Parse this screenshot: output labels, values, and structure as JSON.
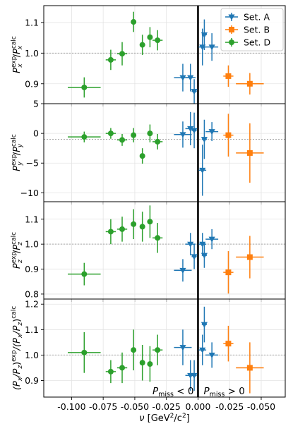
{
  "chart_data": {
    "type": "scatter",
    "xlabel": "ν [GeV²/c²]",
    "xlim": [
      -0.122,
      0.069
    ],
    "x_ticks": [
      {
        "value": -0.1,
        "label": "-0.100"
      },
      {
        "value": -0.075,
        "label": "-0.075"
      },
      {
        "value": -0.05,
        "label": "-0.050"
      },
      {
        "value": -0.025,
        "label": "-0.025"
      },
      {
        "value": 0.0,
        "label": "0.000"
      },
      {
        "value": 0.025,
        "label": "-0.025"
      },
      {
        "value": 0.05,
        "label": "-0.050"
      }
    ],
    "vertical_line_x": 0.0,
    "annotations": [
      {
        "text": "P_miss < 0",
        "base": "P",
        "sub": "miss",
        "rel": "< 0",
        "anchor": "end"
      },
      {
        "text": "P_miss > 0",
        "base": "P",
        "sub": "miss",
        "rel": "> 0",
        "anchor": "start"
      }
    ],
    "legend": {
      "placement": "top-right",
      "entries": [
        {
          "label": "Set. A",
          "color": "#1f77b4",
          "marker": "triangle-down"
        },
        {
          "label": "Set. B",
          "color": "#ff7f0e",
          "marker": "square"
        },
        {
          "label": "Set. D",
          "color": "#2ca02c",
          "marker": "circle"
        }
      ]
    },
    "series_style": {
      "A": {
        "color": "#1f77b4",
        "marker": "triangle-down"
      },
      "B": {
        "color": "#ff7f0e",
        "marker": "square"
      },
      "D": {
        "color": "#2ca02c",
        "marker": "circle"
      }
    },
    "grid": true,
    "panels": [
      {
        "ylabel": "P_x^exp / P_x^calc",
        "ylabel_parts": {
          "b1": "P",
          "sup1": "exp",
          "sub1": "x",
          "mid": "/",
          "b2": "P",
          "sup2": "calc",
          "sub2": "x"
        },
        "ylim": [
          0.835,
          1.155
        ],
        "yticks": [
          {
            "value": 0.9,
            "label": "0.9"
          },
          {
            "value": 1.0,
            "label": "1.0"
          },
          {
            "value": 1.1,
            "label": "1.1"
          }
        ],
        "ref_line": 1.0,
        "series": {
          "A": [
            {
              "x": -0.012,
              "y": 0.92,
              "xerr": 0.007,
              "yerr": 0.045
            },
            {
              "x": -0.006,
              "y": 0.92,
              "xerr": 0.004,
              "yerr": 0.045
            },
            {
              "x": -0.003,
              "y": 0.875,
              "xerr": 0.002,
              "yerr": 0.04
            },
            {
              "x": 0.0035,
              "y": 1.02,
              "xerr": 0.003,
              "yerr": 0.06
            },
            {
              "x": 0.005,
              "y": 1.06,
              "xerr": 0.002,
              "yerr": 0.05
            },
            {
              "x": 0.011,
              "y": 1.02,
              "xerr": 0.005,
              "yerr": 0.045
            }
          ],
          "B": [
            {
              "x": 0.024,
              "y": 0.925,
              "xerr": 0.004,
              "yerr": 0.035
            },
            {
              "x": 0.041,
              "y": 0.9,
              "xerr": 0.011,
              "yerr": 0.035
            }
          ],
          "D": [
            {
              "x": -0.09,
              "y": 0.888,
              "xerr": 0.013,
              "yerr": 0.033
            },
            {
              "x": -0.069,
              "y": 0.978,
              "xerr": 0.004,
              "yerr": 0.033
            },
            {
              "x": -0.06,
              "y": 0.998,
              "xerr": 0.004,
              "yerr": 0.038
            },
            {
              "x": -0.051,
              "y": 1.102,
              "xerr": 0.002,
              "yerr": 0.033
            },
            {
              "x": -0.044,
              "y": 1.027,
              "xerr": 0.002,
              "yerr": 0.033
            },
            {
              "x": -0.038,
              "y": 1.052,
              "xerr": 0.002,
              "yerr": 0.033
            },
            {
              "x": -0.032,
              "y": 1.042,
              "xerr": 0.004,
              "yerr": 0.033
            }
          ]
        }
      },
      {
        "ylabel": "P_y^exp / P_y^calc",
        "ylabel_parts": {
          "b1": "P",
          "sup1": "exp",
          "sub1": "y",
          "mid": "/",
          "b2": "P",
          "sup2": "calc",
          "sub2": "y"
        },
        "ylim": [
          -11.5,
          5.0
        ],
        "yticks": [
          {
            "value": -10,
            "label": "−10"
          },
          {
            "value": -5,
            "label": "−5"
          },
          {
            "value": 0,
            "label": "0"
          },
          {
            "value": 5,
            "label": "5"
          }
        ],
        "ref_line": -1.0,
        "series": {
          "A": [
            {
              "x": -0.012,
              "y": -0.2,
              "xerr": 0.007,
              "yerr": 2.2
            },
            {
              "x": -0.006,
              "y": 0.8,
              "xerr": 0.004,
              "yerr": 2.8
            },
            {
              "x": -0.003,
              "y": 0.5,
              "xerr": 0.002,
              "yerr": 3.0
            },
            {
              "x": 0.0035,
              "y": -6.2,
              "xerr": 0.003,
              "yerr": 4.3
            },
            {
              "x": 0.005,
              "y": -1.0,
              "xerr": 0.002,
              "yerr": 3.3
            },
            {
              "x": 0.011,
              "y": 0.3,
              "xerr": 0.005,
              "yerr": 1.6
            }
          ],
          "B": [
            {
              "x": 0.024,
              "y": -0.3,
              "xerr": 0.004,
              "yerr": 3.6
            },
            {
              "x": 0.041,
              "y": -3.3,
              "xerr": 0.011,
              "yerr": 5.0
            }
          ],
          "D": [
            {
              "x": -0.09,
              "y": -0.6,
              "xerr": 0.013,
              "yerr": 0.9
            },
            {
              "x": -0.069,
              "y": 0.0,
              "xerr": 0.004,
              "yerr": 0.9
            },
            {
              "x": -0.06,
              "y": -1.1,
              "xerr": 0.004,
              "yerr": 1.0
            },
            {
              "x": -0.051,
              "y": -0.3,
              "xerr": 0.002,
              "yerr": 1.2
            },
            {
              "x": -0.044,
              "y": -3.8,
              "xerr": 0.002,
              "yerr": 1.3
            },
            {
              "x": -0.038,
              "y": 0.0,
              "xerr": 0.002,
              "yerr": 1.5
            },
            {
              "x": -0.032,
              "y": -1.4,
              "xerr": 0.004,
              "yerr": 1.3
            }
          ]
        }
      },
      {
        "ylabel": "P_z^exp / P_z^calc",
        "ylabel_parts": {
          "b1": "P",
          "sup1": "exp",
          "sub1": "z",
          "mid": "/",
          "b2": "P",
          "sup2": "calc",
          "sub2": "z"
        },
        "ylim": [
          0.78,
          1.17
        ],
        "yticks": [
          {
            "value": 0.8,
            "label": "0.8"
          },
          {
            "value": 0.9,
            "label": "0.9"
          },
          {
            "value": 1.0,
            "label": "1.0"
          },
          {
            "value": 1.1,
            "label": "1.1"
          }
        ],
        "ref_line": 1.0,
        "series": {
          "A": [
            {
              "x": -0.012,
              "y": 0.895,
              "xerr": 0.007,
              "yerr": 0.045
            },
            {
              "x": -0.006,
              "y": 1.0,
              "xerr": 0.004,
              "yerr": 0.045
            },
            {
              "x": -0.003,
              "y": 0.95,
              "xerr": 0.002,
              "yerr": 0.05
            },
            {
              "x": 0.0035,
              "y": 1.0,
              "xerr": 0.003,
              "yerr": 0.045
            },
            {
              "x": 0.005,
              "y": 0.955,
              "xerr": 0.002,
              "yerr": 0.05
            },
            {
              "x": 0.011,
              "y": 1.02,
              "xerr": 0.005,
              "yerr": 0.04
            }
          ],
          "B": [
            {
              "x": 0.024,
              "y": 0.887,
              "xerr": 0.004,
              "yerr": 0.085
            },
            {
              "x": 0.041,
              "y": 0.948,
              "xerr": 0.011,
              "yerr": 0.085
            }
          ],
          "D": [
            {
              "x": -0.09,
              "y": 0.88,
              "xerr": 0.013,
              "yerr": 0.045
            },
            {
              "x": -0.069,
              "y": 1.05,
              "xerr": 0.004,
              "yerr": 0.05
            },
            {
              "x": -0.06,
              "y": 1.06,
              "xerr": 0.004,
              "yerr": 0.05
            },
            {
              "x": -0.051,
              "y": 1.08,
              "xerr": 0.002,
              "yerr": 0.06
            },
            {
              "x": -0.044,
              "y": 1.07,
              "xerr": 0.002,
              "yerr": 0.06
            },
            {
              "x": -0.038,
              "y": 1.09,
              "xerr": 0.002,
              "yerr": 0.065
            },
            {
              "x": -0.032,
              "y": 1.025,
              "xerr": 0.004,
              "yerr": 0.06
            }
          ]
        }
      },
      {
        "ylabel": "(P_x/P_z)^exp / (P_x/P_z)^calc",
        "ylabel_parts": {
          "b1": "(P",
          "sub1": "x",
          "r1": "/P",
          "sub1b": "z",
          "c1": ")",
          "sup1": "exp",
          "mid": "/(P",
          "sub2": "x",
          "r2": "/P",
          "sub2b": "z",
          "c2": ")",
          "sup2": "calc"
        },
        "ylim": [
          0.835,
          1.22
        ],
        "yticks": [
          {
            "value": 0.9,
            "label": "0.9"
          },
          {
            "value": 1.0,
            "label": "1.0"
          },
          {
            "value": 1.1,
            "label": "1.1"
          },
          {
            "value": 1.2,
            "label": "1.2"
          }
        ],
        "ref_line": 1.0,
        "series": {
          "A": [
            {
              "x": -0.012,
              "y": 1.03,
              "xerr": 0.007,
              "yerr": 0.07
            },
            {
              "x": -0.006,
              "y": 0.92,
              "xerr": 0.004,
              "yerr": 0.06
            },
            {
              "x": -0.003,
              "y": 0.92,
              "xerr": 0.002,
              "yerr": 0.06
            },
            {
              "x": 0.0035,
              "y": 1.02,
              "xerr": 0.003,
              "yerr": 0.06
            },
            {
              "x": 0.005,
              "y": 1.12,
              "xerr": 0.002,
              "yerr": 0.07
            },
            {
              "x": 0.011,
              "y": 1.0,
              "xerr": 0.005,
              "yerr": 0.05
            }
          ],
          "B": [
            {
              "x": 0.024,
              "y": 1.045,
              "xerr": 0.004,
              "yerr": 0.07
            },
            {
              "x": 0.041,
              "y": 0.95,
              "xerr": 0.011,
              "yerr": 0.1
            }
          ],
          "D": [
            {
              "x": -0.09,
              "y": 1.01,
              "xerr": 0.013,
              "yerr": 0.08
            },
            {
              "x": -0.069,
              "y": 0.935,
              "xerr": 0.004,
              "yerr": 0.045
            },
            {
              "x": -0.06,
              "y": 0.95,
              "xerr": 0.004,
              "yerr": 0.06
            },
            {
              "x": -0.051,
              "y": 1.02,
              "xerr": 0.002,
              "yerr": 0.08
            },
            {
              "x": -0.044,
              "y": 0.97,
              "xerr": 0.002,
              "yerr": 0.07
            },
            {
              "x": -0.038,
              "y": 0.965,
              "xerr": 0.002,
              "yerr": 0.07
            },
            {
              "x": -0.032,
              "y": 1.02,
              "xerr": 0.004,
              "yerr": 0.06
            }
          ]
        }
      }
    ]
  }
}
